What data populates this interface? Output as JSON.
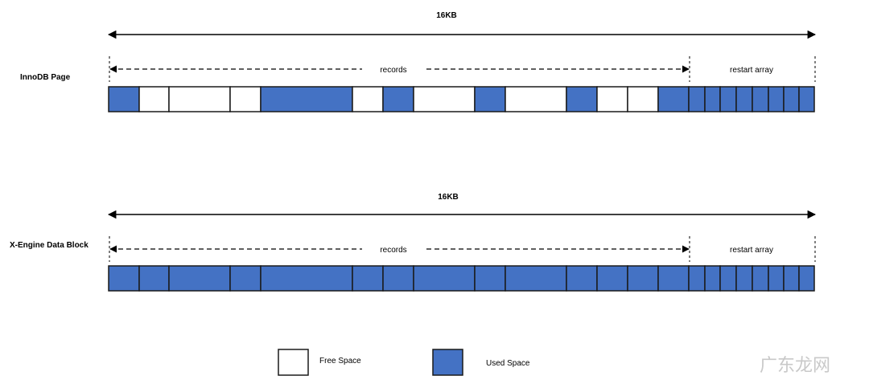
{
  "colors": {
    "used": "#4472C4",
    "free": "#FFFFFF",
    "border": "#1a1a1a"
  },
  "rows": [
    {
      "title": "InnoDB Page",
      "size_label": "16KB",
      "records_label": "records",
      "restart_label": "restart array",
      "blocks": [
        "used",
        "free",
        "free",
        "free",
        "used",
        "free",
        "used",
        "free",
        "used",
        "free",
        "used",
        "free",
        "free",
        "used",
        "used",
        "used",
        "used",
        "used",
        "used",
        "used",
        "used",
        "used"
      ]
    },
    {
      "title": "X-Engine Data Block",
      "size_label": "16KB",
      "records_label": "records",
      "restart_label": "restart array",
      "blocks": [
        "used",
        "used",
        "used",
        "used",
        "used",
        "used",
        "used",
        "used",
        "used",
        "used",
        "used",
        "used",
        "used",
        "used",
        "used",
        "used",
        "used",
        "used",
        "used",
        "used",
        "used",
        "used"
      ]
    }
  ],
  "legend": {
    "free_label": "Free Space",
    "used_label": "Used Space"
  },
  "watermark": "广东龙网"
}
